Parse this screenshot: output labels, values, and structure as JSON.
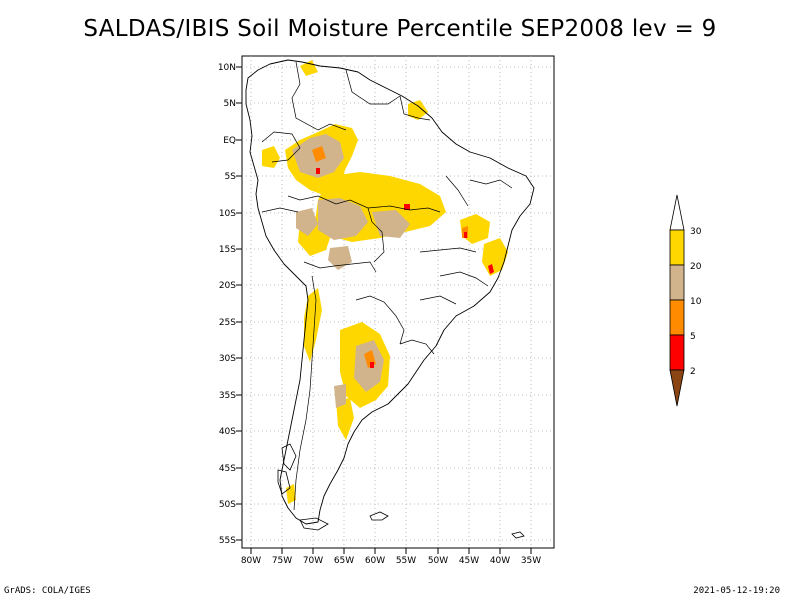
{
  "title": "SALDAS/IBIS Soil Moisture Percentile SEP2008 lev = 9",
  "map": {
    "lat_labels": [
      "10N",
      "5N",
      "EQ",
      "5S",
      "10S",
      "15S",
      "20S",
      "25S",
      "30S",
      "35S",
      "40S",
      "45S",
      "50S",
      "55S"
    ],
    "lon_labels": [
      "80W",
      "75W",
      "70W",
      "65W",
      "60W",
      "55W",
      "50W",
      "45W",
      "40W",
      "35W"
    ],
    "lon_range": [
      -81,
      -31
    ],
    "lat_range": [
      -56,
      12
    ],
    "grid": "dotted"
  },
  "legend": {
    "levels": [
      "30",
      "20",
      "10",
      "5",
      "2"
    ],
    "colors": {
      "above_30": "#ffffff",
      "20_30": "#ffd700",
      "10_20": "#d2b48c",
      "5_10": "#ff8c00",
      "2_5": "#ff0000",
      "below_2": "#8b4513"
    }
  },
  "footer": {
    "left": "GrADS: COLA/IGES",
    "right": "2021-05-12-19:20"
  }
}
